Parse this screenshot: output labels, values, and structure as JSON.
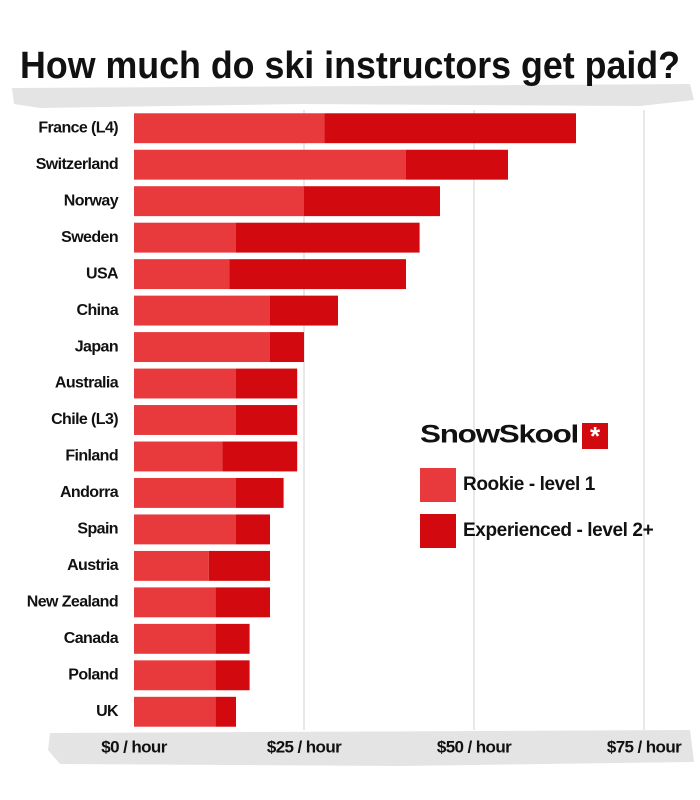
{
  "chart_data": {
    "type": "stacked-barh",
    "title": "How much do ski instructors get paid?",
    "brand": "SnowSkool",
    "categories": [
      "France (L4)",
      "Switzerland",
      "Norway",
      "Sweden",
      "USA",
      "China",
      "Japan",
      "Australia",
      "Chile (L3)",
      "Finland",
      "Andorra",
      "Spain",
      "Austria",
      "New Zealand",
      "Canada",
      "Poland",
      "UK"
    ],
    "series": [
      {
        "name": "Rookie - level 1",
        "color": "#e8393d",
        "values": [
          28,
          40,
          25,
          15,
          14,
          20,
          20,
          15,
          15,
          13,
          15,
          15,
          11,
          12,
          12,
          12,
          12
        ]
      },
      {
        "name": "Experienced - level 2+",
        "color": "#d20a10",
        "values": [
          37,
          15,
          20,
          27,
          26,
          10,
          5,
          9,
          9,
          11,
          7,
          5,
          9,
          8,
          5,
          5,
          3
        ]
      }
    ],
    "xlim": [
      0,
      80
    ],
    "xticks": [
      {
        "value": 0,
        "label": "$0 / hour"
      },
      {
        "value": 25,
        "label": "$25 / hour"
      },
      {
        "value": 50,
        "label": "$50 / hour"
      },
      {
        "value": 75,
        "label": "$75 / hour"
      }
    ],
    "grid": true,
    "legend": "right"
  }
}
